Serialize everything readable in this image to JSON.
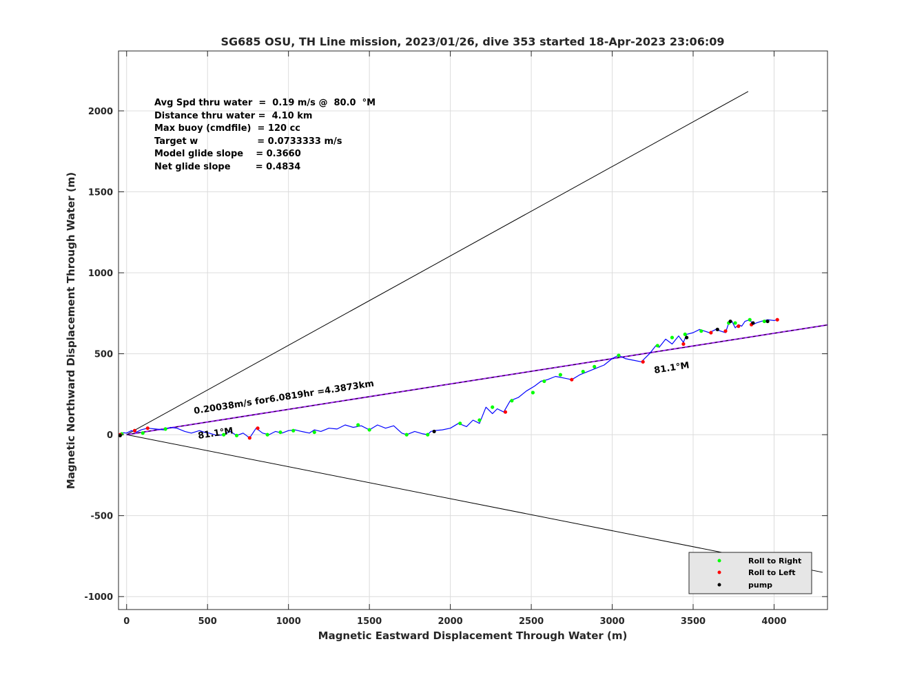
{
  "chart_data": {
    "type": "line",
    "title": "SG685 OSU, TH Line mission, 2023/01/26, dive 353 started 18-Apr-2023 23:06:09",
    "xlabel": "Magnetic Eastward Displacement Through Water (m)",
    "ylabel": "Magnetic Northward Displacement Through Water (m)",
    "xlim": [
      -50,
      4330
    ],
    "ylim": [
      -1080,
      2370
    ],
    "xticks": [
      0,
      500,
      1000,
      1500,
      2000,
      2500,
      3000,
      3500,
      4000
    ],
    "xtick_labels": [
      "0",
      "500",
      "1000",
      "1500",
      "2000",
      "2500",
      "3000",
      "3500",
      "4000"
    ],
    "yticks": [
      -1000,
      -500,
      0,
      500,
      1000,
      1500,
      2000
    ],
    "ytick_labels": [
      "-1000",
      "-500",
      "0",
      "500",
      "1000",
      "1500",
      "2000"
    ],
    "grid": true,
    "stats_text": [
      "Avg Spd thru water  =  0.19 m/s @  80.0  °M",
      "Distance thru water =  4.10 km",
      "Max buoy (cmdfile)  = 120 cc",
      "Target w                   = 0.0733333 m/s",
      "Model glide slope    = 0.3660",
      "Net glide slope        = 0.4834"
    ],
    "annotations": {
      "track_label": "0.20038m/s for6.0819hr =4.3873km",
      "heading_start": "81.1°M",
      "heading_end": "81.1°M"
    },
    "lines": [
      {
        "color": "#000000",
        "x": [
          0,
          3840
        ],
        "y": [
          0,
          2120
        ]
      },
      {
        "color": "#000000",
        "x": [
          0,
          4300
        ],
        "y": [
          0,
          -850
        ]
      },
      {
        "color": "#a020f0",
        "x": [
          0,
          4330
        ],
        "y": [
          0,
          678
        ]
      },
      {
        "color": "#000000",
        "x": [
          0,
          4330
        ],
        "y": [
          0,
          678
        ]
      }
    ],
    "track": {
      "color": "#0000ff",
      "x": [
        -40,
        -20,
        0,
        30,
        60,
        90,
        130,
        180,
        230,
        270,
        310,
        360,
        400,
        450,
        480,
        510,
        560,
        600,
        640,
        680,
        720,
        760,
        800,
        840,
        880,
        920,
        960,
        1000,
        1040,
        1080,
        1130,
        1160,
        1200,
        1250,
        1300,
        1350,
        1400,
        1450,
        1500,
        1550,
        1600,
        1650,
        1700,
        1730,
        1780,
        1830,
        1860,
        1880,
        1900,
        1950,
        2000,
        2050,
        2100,
        2140,
        2180,
        2220,
        2260,
        2290,
        2330,
        2370,
        2420,
        2470,
        2520,
        2560,
        2600,
        2650,
        2700,
        2750,
        2800,
        2850,
        2900,
        2950,
        3000,
        3040,
        3080,
        3130,
        3180,
        3230,
        3270,
        3290,
        3330,
        3370,
        3410,
        3440,
        3460,
        3500,
        3540,
        3570,
        3600,
        3640,
        3670,
        3700,
        3720,
        3740,
        3760,
        3780,
        3800,
        3820,
        3850,
        3870,
        3890,
        3920,
        3960,
        4000,
        4020
      ],
      "y": [
        0,
        12,
        10,
        25,
        15,
        30,
        40,
        35,
        30,
        45,
        40,
        20,
        10,
        25,
        15,
        10,
        -5,
        0,
        20,
        -5,
        10,
        -20,
        40,
        10,
        0,
        20,
        10,
        25,
        30,
        20,
        10,
        30,
        20,
        40,
        35,
        60,
        45,
        55,
        30,
        60,
        40,
        55,
        10,
        0,
        20,
        5,
        0,
        20,
        25,
        30,
        40,
        70,
        50,
        90,
        70,
        170,
        130,
        160,
        140,
        210,
        230,
        270,
        300,
        330,
        340,
        360,
        350,
        340,
        370,
        390,
        410,
        430,
        470,
        490,
        470,
        460,
        450,
        500,
        550,
        540,
        590,
        560,
        610,
        570,
        620,
        630,
        650,
        640,
        630,
        650,
        640,
        630,
        690,
        700,
        660,
        680,
        670,
        700,
        710,
        680,
        690,
        700,
        710,
        705,
        710
      ]
    },
    "roll_right": {
      "color": "#00ff00",
      "x": [
        -30,
        100,
        240,
        600,
        680,
        870,
        950,
        1030,
        1160,
        1430,
        1500,
        1730,
        1860,
        2060,
        2180,
        2260,
        2380,
        2510,
        2580,
        2680,
        2820,
        2890,
        3040,
        3280,
        3370,
        3450,
        3550,
        3720,
        3760,
        3850,
        3940
      ],
      "y": [
        5,
        10,
        35,
        0,
        -5,
        0,
        15,
        25,
        15,
        60,
        30,
        0,
        0,
        70,
        90,
        170,
        210,
        260,
        330,
        370,
        390,
        420,
        490,
        550,
        600,
        620,
        640,
        690,
        690,
        710,
        700
      ]
    },
    "roll_left": {
      "color": "#ff0000",
      "x": [
        -40,
        50,
        130,
        760,
        810,
        2340,
        2750,
        3190,
        3440,
        3610,
        3700,
        3780,
        3860,
        4020
      ],
      "y": [
        0,
        25,
        40,
        -20,
        40,
        140,
        340,
        450,
        560,
        630,
        640,
        670,
        680,
        710
      ]
    },
    "pump": {
      "color": "#000000",
      "x": [
        -40,
        1900,
        3460,
        3650,
        3730,
        3870,
        3960
      ],
      "y": [
        -5,
        20,
        600,
        650,
        700,
        690,
        700
      ]
    },
    "legend": {
      "location": "bottom-right",
      "entries": [
        {
          "label": "Roll to Right",
          "color": "#00ff00"
        },
        {
          "label": "Roll to Left",
          "color": "#ff0000"
        },
        {
          "label": "pump",
          "color": "#000000"
        }
      ]
    }
  }
}
